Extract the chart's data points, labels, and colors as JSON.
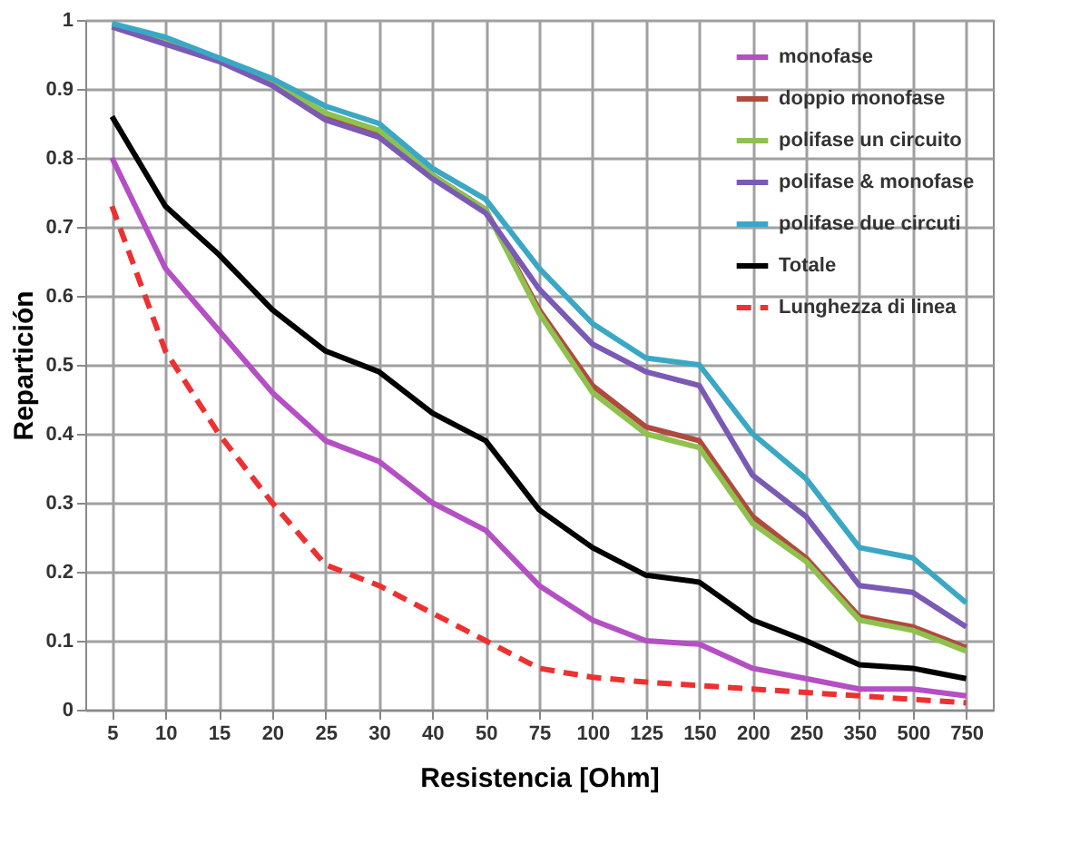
{
  "chart_data": {
    "type": "line",
    "xlabel": "Resistencia [Ohm]",
    "ylabel": "Repartición",
    "categories": [
      "5",
      "10",
      "15",
      "20",
      "25",
      "30",
      "40",
      "50",
      "75",
      "100",
      "125",
      "150",
      "200",
      "250",
      "350",
      "500",
      "750"
    ],
    "ylim": [
      0,
      1
    ],
    "yticks": [
      0,
      0.1,
      0.2,
      0.3,
      0.4,
      0.5,
      0.6,
      0.7,
      0.8,
      0.9,
      1
    ],
    "grid": true,
    "legend": "top right",
    "series": [
      {
        "name": "monofase",
        "color": "#b44fc4",
        "line_style": "solid",
        "values": [
          0.8,
          0.64,
          0.55,
          0.46,
          0.39,
          0.36,
          0.3,
          0.26,
          0.18,
          0.13,
          0.1,
          0.095,
          0.06,
          0.045,
          0.03,
          0.03,
          0.02
        ]
      },
      {
        "name": "doppio monofase",
        "color": "#b04a3e",
        "line_style": "solid",
        "values": [
          null,
          null,
          null,
          0.91,
          0.86,
          0.835,
          0.775,
          0.725,
          0.58,
          0.47,
          0.41,
          0.39,
          0.28,
          0.22,
          0.135,
          0.12,
          0.09
        ]
      },
      {
        "name": "polifase un circuito",
        "color": "#8ec14e",
        "line_style": "solid",
        "values": [
          0.99,
          0.97,
          0.945,
          0.91,
          0.865,
          0.84,
          0.775,
          0.725,
          0.575,
          0.46,
          0.4,
          0.38,
          0.27,
          0.215,
          0.13,
          0.115,
          0.085
        ]
      },
      {
        "name": "polifase & monofase",
        "color": "#7a5ab5",
        "line_style": "solid",
        "values": [
          0.99,
          0.965,
          0.94,
          0.905,
          0.855,
          0.83,
          0.77,
          0.72,
          0.61,
          0.53,
          0.49,
          0.47,
          0.34,
          0.28,
          0.18,
          0.17,
          0.12
        ]
      },
      {
        "name": "polifase due circuti",
        "color": "#3aa8c4",
        "line_style": "solid",
        "values": [
          0.995,
          0.975,
          0.945,
          0.915,
          0.875,
          0.85,
          0.785,
          0.74,
          0.64,
          0.56,
          0.51,
          0.5,
          0.4,
          0.335,
          0.235,
          0.22,
          0.155
        ]
      },
      {
        "name": "Totale",
        "color": "#000000",
        "line_style": "solid",
        "values": [
          0.86,
          0.73,
          0.66,
          0.58,
          0.52,
          0.49,
          0.43,
          0.39,
          0.29,
          0.235,
          0.195,
          0.185,
          0.13,
          0.1,
          0.065,
          0.06,
          0.045
        ]
      },
      {
        "name": "Lunghezza di linea",
        "color": "#ee3030",
        "line_style": "dashed",
        "values": [
          0.73,
          0.52,
          0.4,
          0.3,
          0.21,
          0.18,
          0.14,
          0.1,
          0.06,
          0.047,
          0.04,
          0.035,
          0.03,
          0.025,
          0.02,
          0.015,
          0.01
        ]
      }
    ]
  }
}
